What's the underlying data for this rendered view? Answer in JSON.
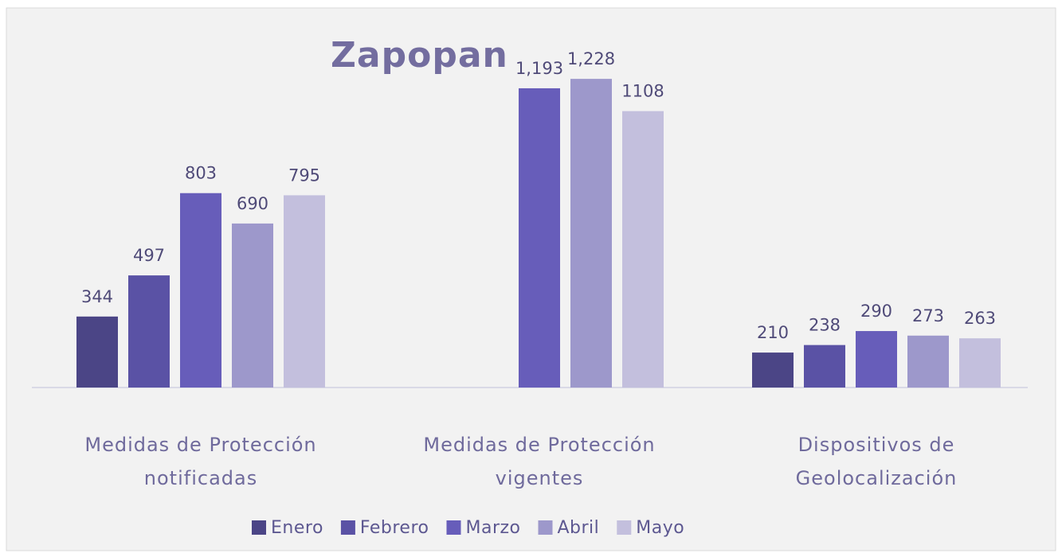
{
  "chart_data": {
    "type": "bar",
    "title": "Zapopan",
    "categories": [
      "Medidas de Protección notificadas",
      "Medidas de Protección vigentes",
      "Dispositivos de Geolocalización"
    ],
    "series": [
      {
        "name": "Enero",
        "color": "#4b4586",
        "values": [
          344,
          null,
          210
        ]
      },
      {
        "name": "Febrero",
        "color": "#5a52a5",
        "values": [
          497,
          null,
          238
        ]
      },
      {
        "name": "Marzo",
        "color": "#675dba",
        "values": [
          803,
          1193,
          290
        ],
        "value_labels": [
          "803",
          "1,193",
          "290"
        ]
      },
      {
        "name": "Abril",
        "color": "#9d98cb",
        "values": [
          690,
          1228,
          273
        ],
        "value_labels": [
          "690",
          "1,228",
          "273"
        ]
      },
      {
        "name": "Mayo",
        "color": "#c3bfdd",
        "values": [
          795,
          1108,
          263
        ]
      }
    ],
    "ylim": [
      80,
      1400
    ],
    "legend": "bottom"
  }
}
